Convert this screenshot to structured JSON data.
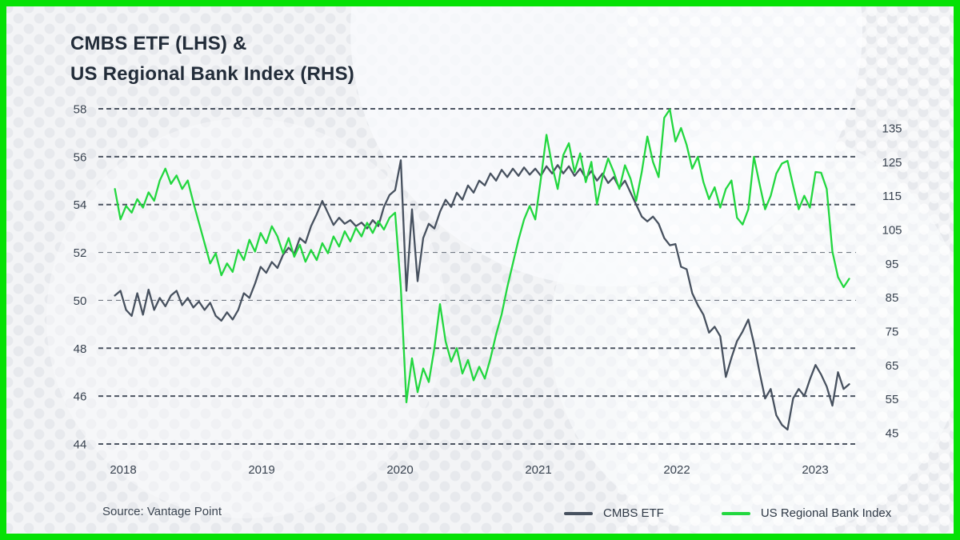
{
  "header": {
    "title_line1": "CMBS ETF (LHS) &",
    "title_line2": "US Regional Bank Index (RHS)"
  },
  "footer": {
    "source": "Source: Vantage Point"
  },
  "colors": {
    "border": "#05e105",
    "background": "#f3f4f6",
    "grid": "#3e4755",
    "title_text": "#222c39",
    "axis_text": "#38424f",
    "cmbs_line": "#47515f",
    "bank_line": "#22d73f"
  },
  "chart_data": {
    "type": "line",
    "title": "CMBS ETF (LHS) & US Regional Bank Index (RHS)",
    "grid": "dashed-horizontal",
    "legend_position": "bottom",
    "x_start": 2017.94,
    "x_step": 0.0405,
    "x_ticks": [
      "2018",
      "2019",
      "2020",
      "2021",
      "2022",
      "2023"
    ],
    "left_axis": {
      "ticks": [
        58,
        56,
        54,
        52,
        50,
        48,
        46,
        44
      ],
      "range": [
        44,
        58
      ],
      "minor": [
        52,
        50
      ]
    },
    "right_axis": {
      "ticks": [
        135,
        125,
        115,
        105,
        95,
        85,
        75,
        65,
        55,
        45
      ],
      "range": [
        45,
        135
      ]
    },
    "series": [
      {
        "name": "CMBS ETF",
        "axis": "left",
        "color": "#47515f",
        "values": [
          50.2,
          50.4,
          49.6,
          49.35,
          50.3,
          49.4,
          50.45,
          49.6,
          50.1,
          49.75,
          50.2,
          50.4,
          49.8,
          50.1,
          49.7,
          49.95,
          49.6,
          49.9,
          49.35,
          49.15,
          49.5,
          49.2,
          49.6,
          50.3,
          50.1,
          50.7,
          51.4,
          51.15,
          51.6,
          51.35,
          51.9,
          52.2,
          51.95,
          52.6,
          52.4,
          53.1,
          53.6,
          54.15,
          53.65,
          53.15,
          53.45,
          53.2,
          53.35,
          53.1,
          53.25,
          53.0,
          53.35,
          53.1,
          53.9,
          54.4,
          54.6,
          55.85,
          50.4,
          53.8,
          50.8,
          52.6,
          53.2,
          53.0,
          53.7,
          54.2,
          53.9,
          54.5,
          54.2,
          54.8,
          54.5,
          55.0,
          54.8,
          55.3,
          55.0,
          55.45,
          55.15,
          55.5,
          55.2,
          55.55,
          55.25,
          55.5,
          55.2,
          55.6,
          55.3,
          55.65,
          55.3,
          55.6,
          55.2,
          55.5,
          55.1,
          55.4,
          55.0,
          55.3,
          54.9,
          55.15,
          54.7,
          55.0,
          54.5,
          54.0,
          53.5,
          53.3,
          53.5,
          53.2,
          52.6,
          52.3,
          52.35,
          51.4,
          51.3,
          50.3,
          49.8,
          49.4,
          48.65,
          48.9,
          48.5,
          46.8,
          47.6,
          48.3,
          48.7,
          49.2,
          48.2,
          47.0,
          45.9,
          46.3,
          45.2,
          44.8,
          44.6,
          45.9,
          46.3,
          46.0,
          46.7,
          47.3,
          46.9,
          46.4,
          45.6,
          47.0,
          46.3,
          46.5
        ]
      },
      {
        "name": "US Regional Bank Index",
        "axis": "right",
        "color": "#22d73f",
        "values": [
          117,
          108,
          112,
          110,
          114,
          111.5,
          116,
          113.5,
          119.5,
          123,
          118.5,
          121,
          117,
          119.5,
          113,
          107,
          101,
          95,
          98,
          91.5,
          95,
          92.5,
          99,
          96,
          102,
          98.5,
          104,
          101,
          106,
          103,
          98,
          102.5,
          97,
          100.5,
          95.5,
          99,
          96,
          101,
          98,
          103,
          100,
          104.5,
          101.5,
          105.5,
          103,
          107,
          104,
          107.5,
          105,
          108.5,
          110,
          88,
          54,
          67,
          57,
          64,
          60,
          70,
          83,
          72,
          66,
          70,
          62.5,
          66.5,
          60.5,
          64.5,
          61,
          67,
          74,
          80,
          88,
          95,
          102,
          108,
          112,
          108,
          120,
          133,
          124,
          117,
          127,
          130.5,
          122,
          127.5,
          119,
          125,
          112.5,
          120.5,
          126,
          122,
          117,
          124,
          120,
          113.5,
          122,
          132.5,
          125,
          120.5,
          138,
          140.5,
          131,
          135,
          130,
          123,
          126.5,
          119,
          114,
          117.5,
          111.5,
          117,
          119.5,
          108.5,
          106.5,
          111,
          126.5,
          118.5,
          111,
          115,
          121.5,
          124.5,
          125.3,
          118,
          111,
          115,
          111.5,
          122,
          121.8,
          117,
          98.5,
          91,
          88,
          90.5
        ]
      }
    ]
  }
}
